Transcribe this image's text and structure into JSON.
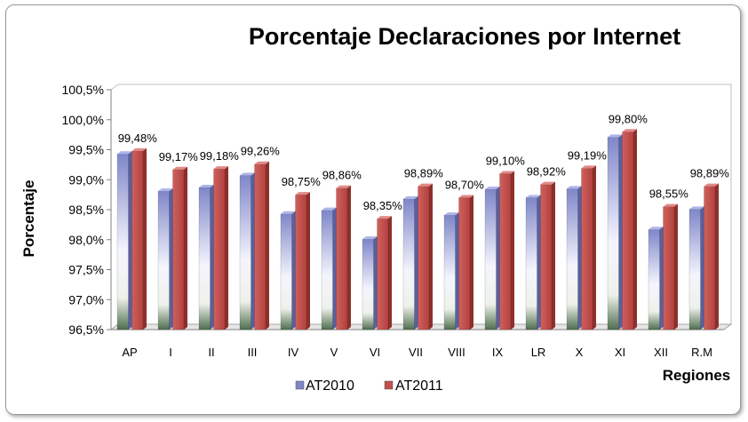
{
  "chart_data": {
    "type": "bar",
    "title": "Porcentaje Declaraciones por Internet",
    "xlabel": "Regiones",
    "ylabel": "Porcentaje",
    "ylim": [
      96.5,
      100.5
    ],
    "yticks": [
      "96,5%",
      "97,0%",
      "97,5%",
      "98,0%",
      "98,5%",
      "99,0%",
      "99,5%",
      "100,0%",
      "100,5%"
    ],
    "categories": [
      "AP",
      "I",
      "II",
      "III",
      "IV",
      "V",
      "VI",
      "VII",
      "VIII",
      "IX",
      "LR",
      "X",
      "XI",
      "XII",
      "R.M"
    ],
    "series": [
      {
        "name": "AT2010",
        "color": "#7f86c8",
        "values": [
          99.43,
          98.81,
          98.87,
          99.07,
          98.43,
          98.49,
          98.01,
          98.68,
          98.41,
          98.84,
          98.7,
          98.85,
          99.71,
          98.17,
          98.51
        ]
      },
      {
        "name": "AT2011",
        "color": "#c0504d",
        "values": [
          99.48,
          99.17,
          99.18,
          99.26,
          98.75,
          98.86,
          98.35,
          98.89,
          98.7,
          99.1,
          98.92,
          99.19,
          99.8,
          98.55,
          98.89
        ]
      }
    ],
    "data_labels": [
      "99,48%",
      "99,17%",
      "99,18%",
      "99,26%",
      "98,75%",
      "98,86%",
      "98,35%",
      "98,89%",
      "98,70%",
      "99,10%",
      "98,92%",
      "99,19%",
      "99,80%",
      "98,55%",
      "98,89%"
    ],
    "grid": false,
    "legend": "bottom"
  }
}
